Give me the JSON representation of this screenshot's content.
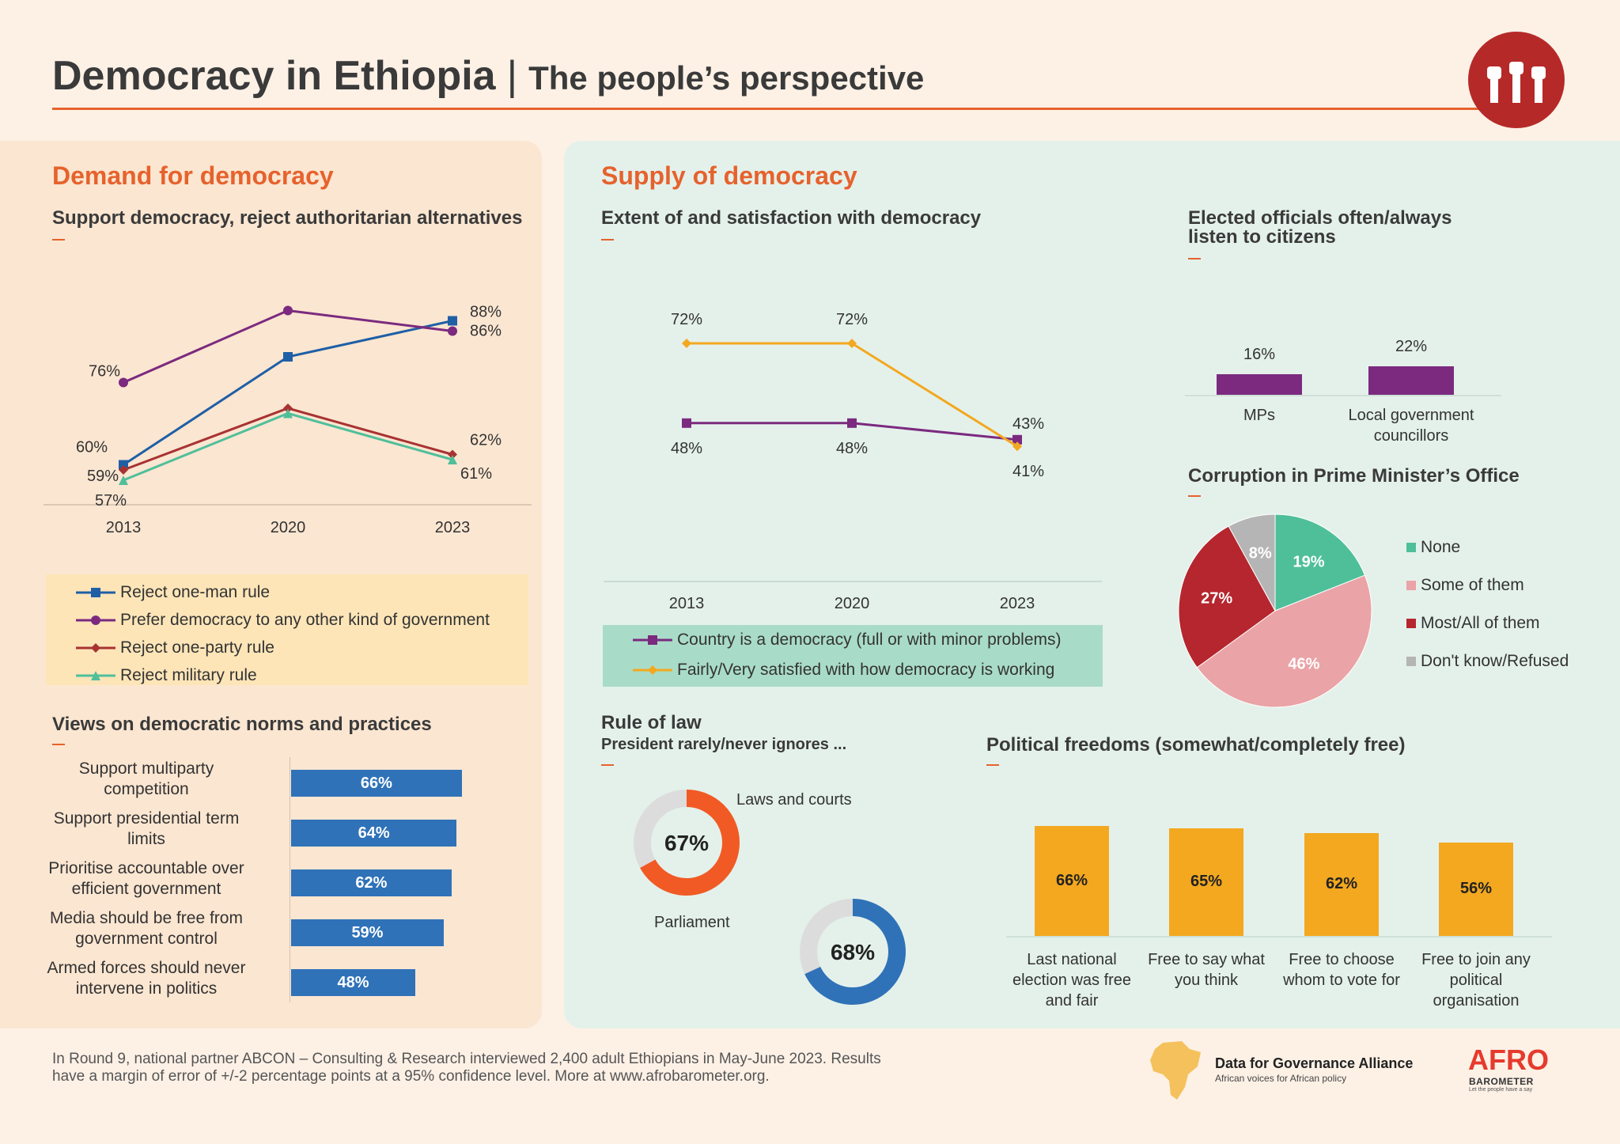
{
  "header": {
    "title": "Democracy in Ethiopia",
    "separator": "|",
    "subtitle": "The people’s perspective"
  },
  "colors": {
    "accent": "#e6622d",
    "logo": "#b52a28",
    "blue": "#1f5fa6",
    "purple": "#7b2a7f",
    "darkred": "#a83232",
    "green": "#4fbf9a",
    "orange": "#f3a81f",
    "bar_blue": "#2f72b8",
    "donut_orange": "#f15a24",
    "pie_none": "#4fbf9a",
    "pie_some": "#eaa3a6",
    "pie_most": "#b5262e",
    "pie_dk": "#b5b5b5"
  },
  "demand": {
    "section_title": "Demand for democracy",
    "support_title": "Support democracy, reject authoritarian alternatives",
    "norms_title": "Views on democratic norms and practices"
  },
  "supply": {
    "section_title": "Supply of democracy",
    "extent_title": "Extent of and satisfaction with democracy",
    "officials_title_line1": "Elected officials often/always",
    "officials_title_line2": "listen to citizens",
    "corruption_title": "Corruption in Prime Minister’s Office",
    "rule_title": "Rule of law",
    "rule_subtitle": "President rarely/never ignores ...",
    "freedoms_title": "Political freedoms (somewhat/completely free)"
  },
  "chart_data": [
    {
      "id": "support",
      "type": "line",
      "x": [
        "2013",
        "2020",
        "2023"
      ],
      "series": [
        {
          "name": "Reject one-man rule",
          "values": [
            60,
            81,
            88
          ],
          "labels": [
            "60%",
            "",
            "88%"
          ],
          "color": "#1f5fa6",
          "marker": "square"
        },
        {
          "name": "Prefer democracy to any other kind of government",
          "values": [
            76,
            90,
            86
          ],
          "labels": [
            "76%",
            "",
            "86%"
          ],
          "color": "#7b2a7f",
          "marker": "circle"
        },
        {
          "name": "Reject one-party rule",
          "values": [
            59,
            71,
            62
          ],
          "labels": [
            "59%",
            "",
            "62%"
          ],
          "color": "#a83232",
          "marker": "diamond"
        },
        {
          "name": "Reject military rule",
          "values": [
            57,
            70,
            61
          ],
          "labels": [
            "57%",
            "",
            "61%"
          ],
          "color": "#4fbf9a",
          "marker": "triangle"
        }
      ]
    },
    {
      "id": "norms",
      "type": "bar",
      "orientation": "horizontal",
      "categories": [
        "Support multiparty competition",
        "Support presidential term limits",
        "Prioritise accountable over efficient government",
        "Media should be free from government control",
        "Armed forces should never intervene in politics"
      ],
      "category_lines": [
        [
          "Support multiparty",
          "competition"
        ],
        [
          "Support presidential term",
          "limits"
        ],
        [
          "Prioritise accountable over",
          "efficient government"
        ],
        [
          "Media should be free from",
          "government control"
        ],
        [
          "Armed forces should never",
          "intervene in politics"
        ]
      ],
      "values": [
        66,
        64,
        62,
        59,
        48
      ],
      "labels": [
        "66%",
        "64%",
        "62%",
        "59%",
        "48%"
      ]
    },
    {
      "id": "extent",
      "type": "line",
      "x": [
        "2013",
        "2020",
        "2023"
      ],
      "series": [
        {
          "name": "Country is a democracy (full or with minor problems)",
          "values": [
            48,
            48,
            43
          ],
          "labels": [
            "48%",
            "48%",
            "43%"
          ],
          "color": "#7b2a7f",
          "marker": "square"
        },
        {
          "name": "Fairly/Very satisfied with how democracy is working",
          "values": [
            72,
            72,
            41
          ],
          "labels": [
            "72%",
            "72%",
            "41%"
          ],
          "color": "#f3a81f",
          "marker": "diamond"
        }
      ]
    },
    {
      "id": "officials",
      "type": "bar",
      "categories": [
        "MPs",
        "Local government councillors"
      ],
      "category_lines": [
        [
          "MPs"
        ],
        [
          "Local government",
          "councillors"
        ]
      ],
      "values": [
        16,
        22
      ],
      "labels": [
        "16%",
        "22%"
      ]
    },
    {
      "id": "corruption",
      "type": "pie",
      "categories": [
        "None",
        "Some of them",
        "Most/All of them",
        "Don't know/Refused"
      ],
      "values": [
        19,
        46,
        27,
        8
      ],
      "labels": [
        "19%",
        "46%",
        "27%",
        "8%"
      ]
    },
    {
      "id": "rule_of_law",
      "type": "pie",
      "categories": [
        "Laws and courts",
        "Parliament"
      ],
      "values": [
        67,
        68
      ],
      "labels": [
        "67%",
        "68%"
      ]
    },
    {
      "id": "freedoms",
      "type": "bar",
      "categories": [
        "Last national election was free and fair",
        "Free to say what you think",
        "Free to choose whom to vote for",
        "Free to join any political organisation"
      ],
      "category_lines": [
        [
          "Last national",
          "election was free",
          "and fair"
        ],
        [
          "Free to say what",
          "you think"
        ],
        [
          "Free to choose",
          "whom to vote for"
        ],
        [
          "Free to join any",
          "political",
          "organisation"
        ]
      ],
      "values": [
        66,
        65,
        62,
        56
      ],
      "labels": [
        "66%",
        "65%",
        "62%",
        "56%"
      ]
    }
  ],
  "footer": {
    "line1": "In Round 9, national partner ABCON – Consulting & Research interviewed 2,400 adult Ethiopians in May-June 2023. Results",
    "line2": "have a margin of error of +/-2 percentage points at a 95% confidence level. More at www.afrobarometer.org.",
    "dga_name": "Data for Governance Alliance",
    "dga_tagline": "African voices for African policy",
    "afro_1": "AFRO",
    "afro_2": "BAROMETER",
    "afro_tagline": "Let the people have a say"
  }
}
